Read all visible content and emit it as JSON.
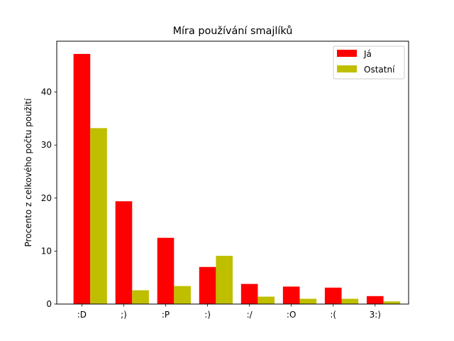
{
  "chart_data": {
    "type": "bar",
    "title": "Míra používání smajlíků",
    "xlabel": "",
    "ylabel": "Procento z celkového počtu použití",
    "categories": [
      ":D",
      ";)",
      ":P",
      ":)",
      ":/",
      ":O",
      ":(",
      "3:)"
    ],
    "series": [
      {
        "name": "Já",
        "color": "#ff0000",
        "values": [
          47.2,
          19.4,
          12.5,
          7.0,
          3.8,
          3.3,
          3.1,
          1.5
        ]
      },
      {
        "name": "Ostatní",
        "color": "#bfbf00",
        "values": [
          33.2,
          2.6,
          3.4,
          9.1,
          1.4,
          1.0,
          1.0,
          0.5
        ]
      }
    ],
    "ylim": [
      0,
      49.6
    ],
    "yticks": [
      0,
      10,
      20,
      30,
      40
    ],
    "grid": false,
    "legend_position": "top-right"
  }
}
